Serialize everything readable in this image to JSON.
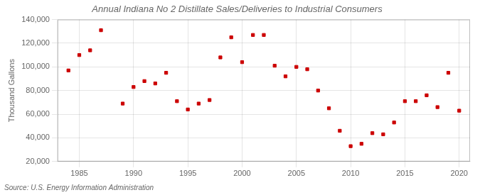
{
  "chart_data": {
    "type": "scatter",
    "title": "Annual Indiana No 2 Distillate Sales/Deliveries to Industrial Consumers",
    "ylabel": "Thousand Gallons",
    "annotation": "Source: U.S. Energy Information Administration",
    "x": [
      1984,
      1985,
      1986,
      1987,
      1989,
      1990,
      1991,
      1992,
      1993,
      1994,
      1995,
      1996,
      1997,
      1998,
      1999,
      2000,
      2001,
      2002,
      2003,
      2004,
      2005,
      2006,
      2007,
      2008,
      2009,
      2010,
      2011,
      2012,
      2013,
      2014,
      2015,
      2016,
      2017,
      2018,
      2019,
      2020
    ],
    "values": [
      97000,
      110000,
      114000,
      131000,
      69000,
      83000,
      88000,
      86000,
      95000,
      71000,
      64000,
      69000,
      72000,
      108000,
      125000,
      104000,
      127000,
      127000,
      101000,
      92000,
      100000,
      98000,
      80000,
      65000,
      46000,
      33000,
      35000,
      44000,
      43000,
      53000,
      71000,
      71000,
      76000,
      66000,
      95000,
      63000
    ],
    "color": "#cc0000",
    "marker": "square",
    "xlim": [
      1983,
      2021
    ],
    "xticks": [
      1985,
      1990,
      1995,
      2000,
      2005,
      2010,
      2015,
      2020
    ],
    "ylim": [
      20000,
      140000
    ],
    "yticks": [
      {
        "value": 20000,
        "label": "20,000"
      },
      {
        "value": 40000,
        "label": "40,000"
      },
      {
        "value": 60000,
        "label": "60,000"
      },
      {
        "value": 80000,
        "label": "80,000"
      },
      {
        "value": 100000,
        "label": "100,000"
      },
      {
        "value": 120000,
        "label": "120,000"
      },
      {
        "value": 140000,
        "label": "140,000"
      }
    ],
    "grid": true
  }
}
